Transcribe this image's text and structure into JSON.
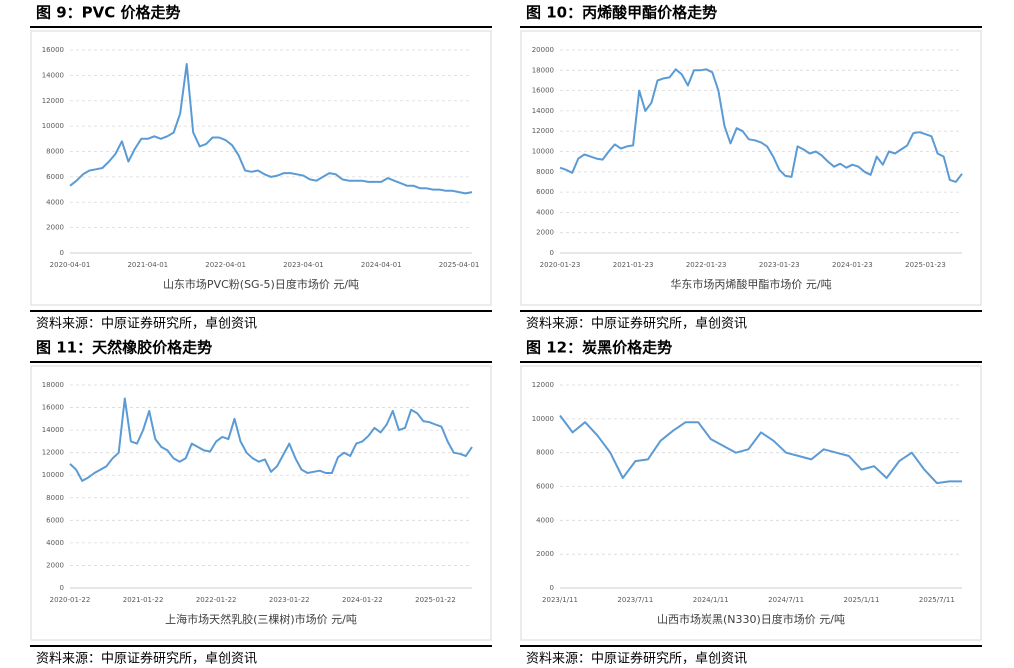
{
  "chart_data": [
    {
      "type": "line",
      "title": "图 9：PVC 价格走势",
      "source": "资料来源：中原证券研究所，卓创资讯",
      "categories": [
        "2020-04-01",
        null,
        null,
        null,
        null,
        null,
        null,
        null,
        null,
        null,
        null,
        null,
        "2021-04-01",
        null,
        null,
        null,
        null,
        null,
        null,
        null,
        null,
        null,
        null,
        null,
        "2022-04-01",
        null,
        null,
        null,
        null,
        null,
        null,
        null,
        null,
        null,
        null,
        null,
        "2023-04-01",
        null,
        null,
        null,
        null,
        null,
        null,
        null,
        null,
        null,
        null,
        null,
        "2024-04-01",
        null,
        null,
        null,
        null,
        null,
        null,
        null,
        null,
        null,
        null,
        null,
        "2025-04-01",
        null,
        null
      ],
      "series": [
        {
          "name": "山东市场PVC粉(SG-5)日度市场价 元/吨",
          "color": "#5b9bd5",
          "values": [
            5300,
            5700,
            6200,
            6500,
            6600,
            6700,
            7200,
            7800,
            8800,
            7200,
            8200,
            9000,
            9000,
            9200,
            9000,
            9200,
            9500,
            11000,
            14900,
            9500,
            8400,
            8600,
            9100,
            9100,
            8900,
            8500,
            7700,
            6500,
            6400,
            6500,
            6200,
            6000,
            6100,
            6300,
            6300,
            6200,
            6100,
            5800,
            5700,
            6000,
            6300,
            6200,
            5800,
            5700,
            5700,
            5700,
            5600,
            5600,
            5600,
            5900,
            5700,
            5500,
            5300,
            5300,
            5100,
            5100,
            5000,
            5000,
            4900,
            4900,
            4800,
            4700,
            4800
          ]
        }
      ],
      "ylim": [
        0,
        16000
      ],
      "yticks": [
        0,
        2000,
        4000,
        6000,
        8000,
        10000,
        12000,
        14000,
        16000
      ],
      "grid": true
    },
    {
      "type": "line",
      "title": "图 10：丙烯酸甲酯价格走势",
      "source": "资料来源：中原证券研究所，卓创资讯",
      "categories": [
        "2020-01-23",
        null,
        null,
        null,
        null,
        null,
        null,
        null,
        null,
        null,
        null,
        null,
        "2021-01-23",
        null,
        null,
        null,
        null,
        null,
        null,
        null,
        null,
        null,
        null,
        null,
        "2022-01-23",
        null,
        null,
        null,
        null,
        null,
        null,
        null,
        null,
        null,
        null,
        null,
        "2023-01-23",
        null,
        null,
        null,
        null,
        null,
        null,
        null,
        null,
        null,
        null,
        null,
        "2024-01-23",
        null,
        null,
        null,
        null,
        null,
        null,
        null,
        null,
        null,
        null,
        null,
        "2025-01-23",
        null,
        null,
        null,
        null,
        null,
        null
      ],
      "series": [
        {
          "name": "华东市场丙烯酸甲酯市场价 元/吨",
          "color": "#5b9bd5",
          "values": [
            8400,
            8200,
            7900,
            9300,
            9700,
            9500,
            9300,
            9200,
            10000,
            10700,
            10300,
            10500,
            10600,
            16000,
            14000,
            14800,
            17000,
            17200,
            17300,
            18100,
            17600,
            16500,
            18000,
            18000,
            18100,
            17800,
            16000,
            12500,
            10800,
            12300,
            12000,
            11200,
            11100,
            10900,
            10500,
            9500,
            8200,
            7600,
            7500,
            10500,
            10200,
            9800,
            10000,
            9600,
            9000,
            8500,
            8800,
            8400,
            8700,
            8500,
            8000,
            7700,
            9500,
            8700,
            10000,
            9800,
            10200,
            10600,
            11800,
            11900,
            11700,
            11500,
            9800,
            9500,
            7200,
            7000,
            7800
          ]
        }
      ],
      "ylim": [
        0,
        20000
      ],
      "yticks": [
        0,
        2000,
        4000,
        6000,
        8000,
        10000,
        12000,
        14000,
        16000,
        18000,
        20000
      ],
      "grid": true
    },
    {
      "type": "line",
      "title": "图 11：天然橡胶价格走势",
      "source": "资料来源：中原证券研究所，卓创资讯",
      "categories": [
        "2020-01-22",
        null,
        null,
        null,
        null,
        null,
        null,
        null,
        null,
        null,
        null,
        null,
        "2021-01-22",
        null,
        null,
        null,
        null,
        null,
        null,
        null,
        null,
        null,
        null,
        null,
        "2022-01-22",
        null,
        null,
        null,
        null,
        null,
        null,
        null,
        null,
        null,
        null,
        null,
        "2023-01-22",
        null,
        null,
        null,
        null,
        null,
        null,
        null,
        null,
        null,
        null,
        null,
        "2024-01-22",
        null,
        null,
        null,
        null,
        null,
        null,
        null,
        null,
        null,
        null,
        null,
        "2025-01-22",
        null,
        null,
        null,
        null,
        null,
        null
      ],
      "series": [
        {
          "name": "上海市场天然乳胶(三棵树)市场价 元/吨",
          "color": "#5b9bd5",
          "values": [
            11000,
            10500,
            9500,
            9800,
            10200,
            10500,
            10800,
            11500,
            12000,
            16800,
            13000,
            12800,
            14000,
            15700,
            13200,
            12500,
            12200,
            11500,
            11200,
            11500,
            12800,
            12500,
            12200,
            12100,
            13000,
            13400,
            13200,
            15000,
            13000,
            12000,
            11500,
            11200,
            11400,
            10300,
            10800,
            11800,
            12800,
            11500,
            10500,
            10200,
            10300,
            10400,
            10200,
            10200,
            11600,
            12000,
            11700,
            12800,
            13000,
            13500,
            14200,
            13800,
            14500,
            15700,
            14000,
            14200,
            15800,
            15500,
            14800,
            14700,
            14500,
            14300,
            13000,
            12000,
            11900,
            11700,
            12500
          ]
        }
      ],
      "ylim": [
        0,
        18000
      ],
      "yticks": [
        0,
        2000,
        4000,
        6000,
        8000,
        10000,
        12000,
        14000,
        16000,
        18000
      ],
      "grid": true
    },
    {
      "type": "line",
      "title": "图 12：炭黑价格走势",
      "source": "资料来源：中原证券研究所，卓创资讯",
      "categories": [
        "2023/1/11",
        null,
        null,
        null,
        null,
        null,
        "2023/7/11",
        null,
        null,
        null,
        null,
        null,
        "2024/1/11",
        null,
        null,
        null,
        null,
        null,
        "2024/7/11",
        null,
        null,
        null,
        null,
        null,
        "2025/1/11",
        null,
        null,
        null,
        null,
        null,
        "2025/7/11",
        null,
        null
      ],
      "series": [
        {
          "name": "山西市场炭黑(N330)日度市场价 元/吨",
          "color": "#5b9bd5",
          "values": [
            10200,
            9200,
            9800,
            9000,
            8000,
            6500,
            7500,
            7600,
            8700,
            9300,
            9800,
            9800,
            8800,
            8400,
            8000,
            8200,
            9200,
            8700,
            8000,
            7800,
            7600,
            8200,
            8000,
            7800,
            7000,
            7200,
            6500,
            7500,
            8000,
            7000,
            6200,
            6300,
            6300
          ]
        }
      ],
      "ylim": [
        0,
        12000
      ],
      "yticks": [
        0,
        2000,
        4000,
        6000,
        8000,
        10000,
        12000
      ],
      "grid": true
    }
  ]
}
